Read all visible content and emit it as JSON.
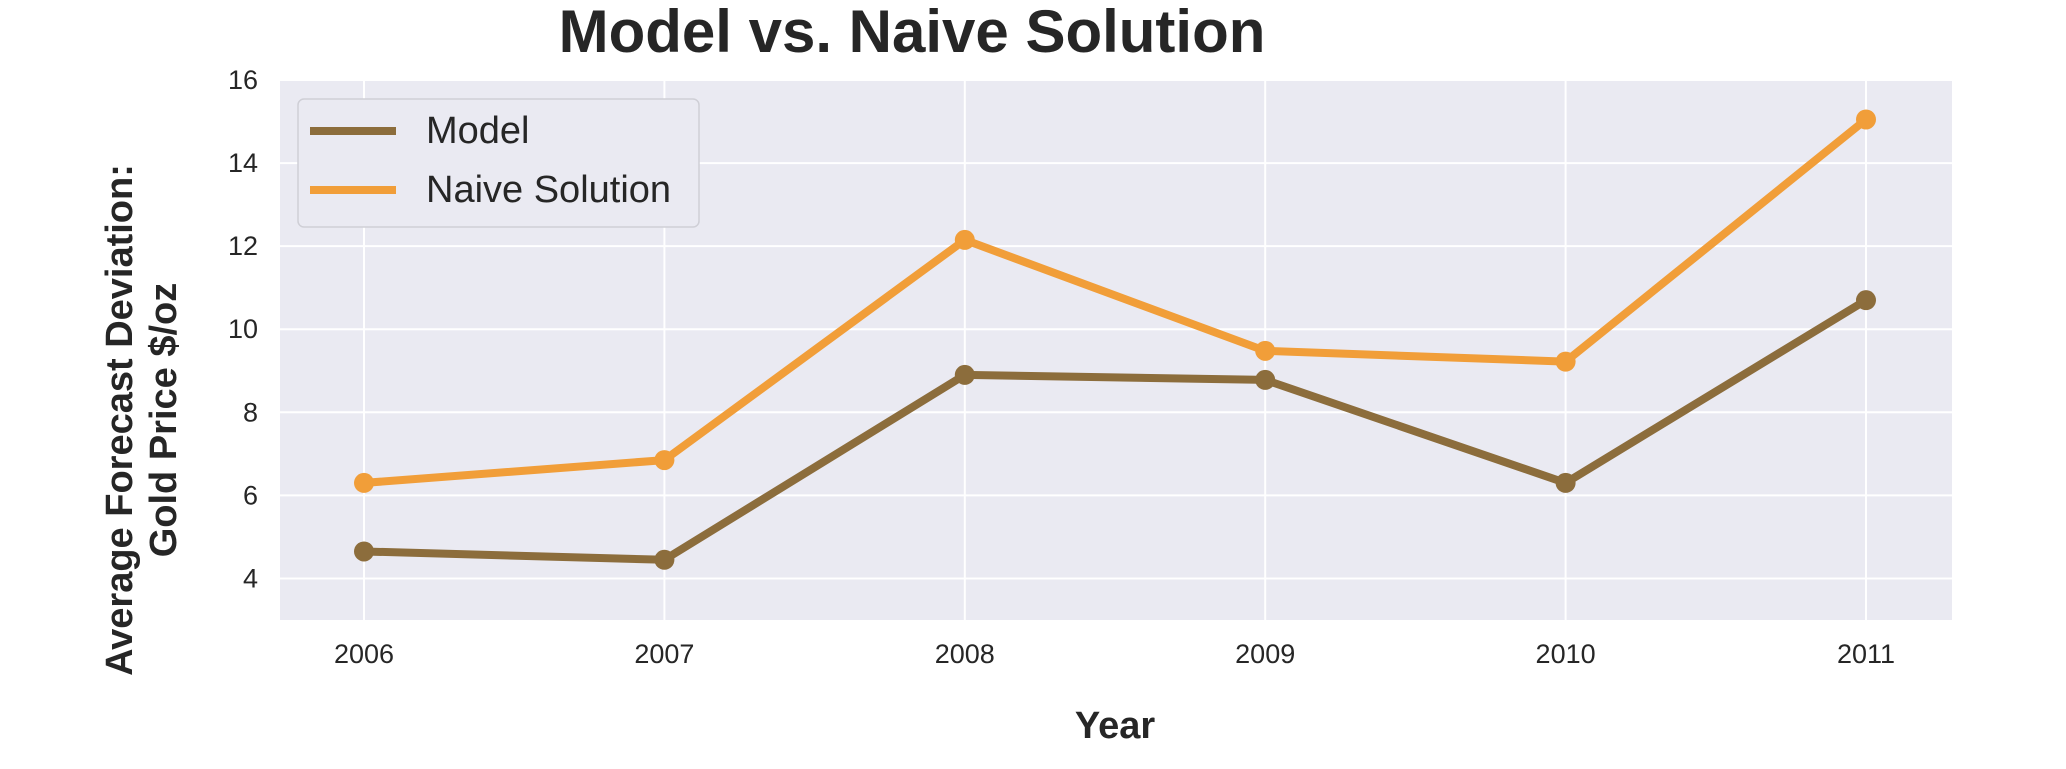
{
  "chart_data": {
    "type": "line",
    "title": "Model vs. Naive Solution",
    "xlabel": "Year",
    "ylabel_lines": [
      "Average Forecast Deviation:",
      "Gold Price $/oz"
    ],
    "x": [
      "2006",
      "2007",
      "2008",
      "2009",
      "2010",
      "2011"
    ],
    "ylim": [
      3,
      16
    ],
    "yticks": [
      4,
      6,
      8,
      10,
      12,
      14,
      16
    ],
    "grid": true,
    "legend": "top-left",
    "series": [
      {
        "name": "Model",
        "color": "#8c6d3c",
        "values": [
          4.65,
          4.45,
          8.9,
          8.78,
          6.3,
          10.7
        ]
      },
      {
        "name": "Naive Solution",
        "color": "#f19e39",
        "values": [
          6.3,
          6.85,
          12.15,
          9.48,
          9.22,
          15.05
        ]
      }
    ]
  }
}
